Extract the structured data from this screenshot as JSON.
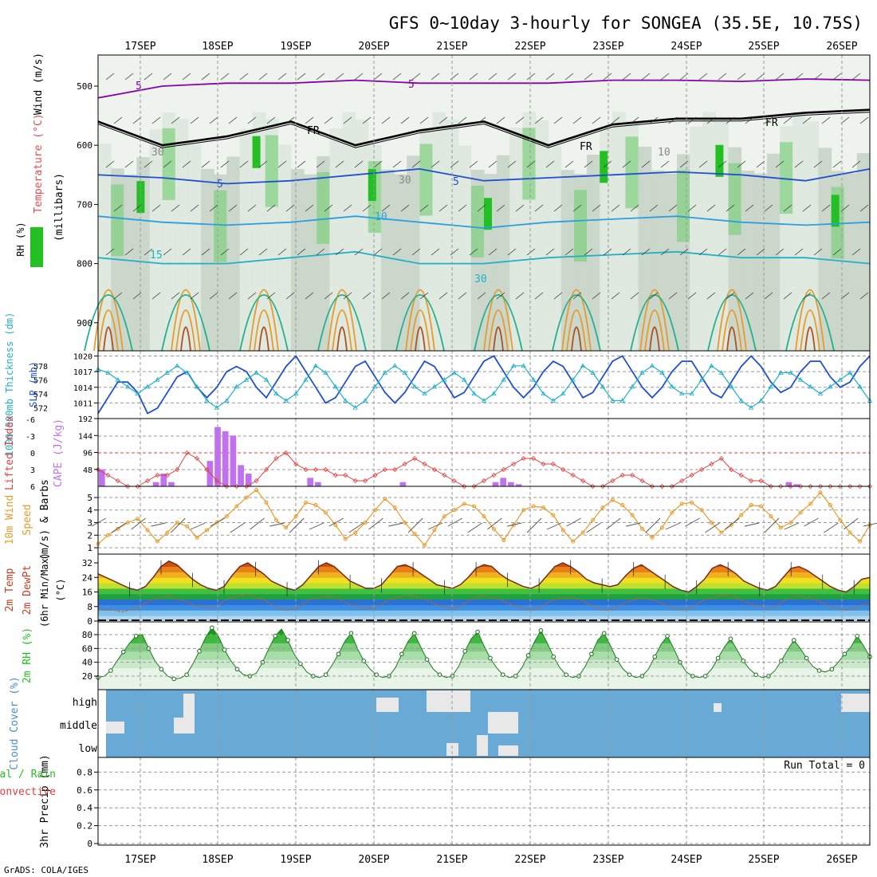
{
  "title": "GFS 0~10day 3-hourly for SONGEA (35.5E, 10.75S)",
  "footer": "GrADS: COLA/IGES",
  "dates": [
    "17SEP",
    "18SEP",
    "19SEP",
    "20SEP",
    "21SEP",
    "22SEP",
    "23SEP",
    "24SEP",
    "25SEP",
    "26SEP"
  ],
  "colors": {
    "rh_green": "#22c022",
    "purple": "#8800aa",
    "blue": "#2050d0",
    "cyan": "#20b0c8",
    "orange": "#e89a2a",
    "cloud_blue": "#69a9d6",
    "cloud_gray": "#e8e8e8",
    "cape": "#c070f0",
    "lifted": "#e04040"
  },
  "chart_data": [
    {
      "type": "contour",
      "name": "upper-air",
      "ylabel_parts": [
        "RH (%)",
        "Temperature (°C)",
        "Wind (m/s)"
      ],
      "ylabel": "(millibars)",
      "yticks": [
        500,
        600,
        700,
        800,
        900
      ],
      "contour_labels": [
        "5",
        "5",
        "5",
        "10",
        "15",
        "5",
        "FR",
        "FR",
        "FR",
        "30",
        "10",
        "30",
        "30"
      ],
      "isotherms": [
        {
          "name": "-5C",
          "level": [
            520,
            500,
            495,
            495,
            490,
            495,
            495,
            495,
            490,
            490,
            492,
            488,
            490
          ]
        },
        {
          "name": "0C (FR)",
          "level": [
            560,
            600,
            585,
            560,
            600,
            575,
            560,
            600,
            565,
            555,
            555,
            545,
            540
          ]
        },
        {
          "name": "5C",
          "level": [
            650,
            655,
            665,
            660,
            650,
            640,
            660,
            655,
            650,
            645,
            650,
            660,
            640
          ]
        },
        {
          "name": "10C",
          "level": [
            720,
            730,
            735,
            730,
            720,
            730,
            740,
            730,
            725,
            720,
            730,
            735,
            730
          ]
        },
        {
          "name": "15C",
          "level": [
            790,
            800,
            800,
            790,
            780,
            800,
            800,
            790,
            785,
            780,
            790,
            790,
            800
          ]
        }
      ]
    },
    {
      "type": "line",
      "name": "slp-thickness",
      "ylabel_left": "1000-500mb Thickness (dm)",
      "ylabel_right": "SLP (mb)",
      "yticks_left": [
        572,
        574,
        576,
        578
      ],
      "yticks_right": [
        1011,
        1014,
        1017,
        1020
      ],
      "ylim_right": [
        1008,
        1021
      ],
      "series": [
        {
          "name": "SLP",
          "values": [
            1009,
            1012,
            1015,
            1015,
            1013,
            1009,
            1010,
            1013,
            1016,
            1017,
            1014,
            1012,
            1014,
            1017,
            1018,
            1017,
            1014,
            1012,
            1015,
            1018,
            1020,
            1017,
            1014,
            1011,
            1012,
            1015,
            1018,
            1019,
            1016,
            1013,
            1011,
            1013,
            1016,
            1019,
            1018,
            1015,
            1012,
            1013,
            1016,
            1019,
            1020,
            1017,
            1014,
            1012,
            1014,
            1017,
            1019,
            1018,
            1015,
            1012,
            1013,
            1016,
            1019,
            1020,
            1017,
            1014,
            1012,
            1014,
            1017,
            1019,
            1019,
            1016,
            1013,
            1012,
            1015,
            1018,
            1020,
            1018,
            1015,
            1013,
            1014,
            1017,
            1019,
            1019,
            1016,
            1014,
            1015,
            1018,
            1020
          ]
        },
        {
          "name": "Thickness",
          "values": [
            577.5,
            577,
            576,
            575,
            574,
            575,
            576,
            577,
            578,
            577,
            575,
            573,
            572,
            573,
            575,
            576,
            577,
            576,
            574,
            573,
            574,
            576,
            578,
            577,
            575,
            573,
            572,
            573,
            575,
            577,
            578,
            577,
            575,
            574,
            575,
            576,
            577,
            576,
            574,
            573,
            574,
            576,
            578,
            578,
            576,
            574,
            573,
            574,
            576,
            578,
            577,
            575,
            573,
            573,
            575,
            577,
            578,
            577,
            575,
            574,
            574,
            576,
            578,
            577,
            575,
            573,
            572,
            573,
            575,
            577,
            577,
            576,
            575,
            574,
            575,
            576,
            577,
            575,
            573
          ]
        }
      ]
    },
    {
      "type": "bar+line",
      "name": "cape-lifted",
      "ylabel_left": "Lifted Index",
      "ylabel_right": "CAPE (J/kg)",
      "yticks_left": [
        -6,
        -3,
        0,
        3,
        6
      ],
      "yticks_right": [
        48,
        96,
        144,
        192
      ],
      "cape_values": [
        48,
        0,
        0,
        0,
        0,
        0,
        0,
        12,
        36,
        12,
        0,
        0,
        0,
        0,
        72,
        168,
        156,
        144,
        60,
        36,
        0,
        0,
        0,
        0,
        0,
        0,
        0,
        24,
        12,
        0,
        0,
        0,
        0,
        0,
        0,
        0,
        0,
        0,
        0,
        12,
        0,
        0,
        0,
        0,
        0,
        0,
        0,
        0,
        0,
        0,
        0,
        12,
        24,
        12,
        6,
        0,
        0,
        0,
        0,
        0,
        0,
        0,
        0,
        0,
        0,
        0,
        0,
        0,
        0,
        0,
        0,
        0,
        0,
        0,
        0,
        0,
        0,
        0,
        0,
        0,
        0,
        0,
        0,
        0,
        0,
        0,
        0,
        0,
        0,
        12,
        6,
        0,
        0,
        0,
        0,
        0,
        0,
        0,
        0,
        0
      ],
      "lifted_values": [
        3,
        4,
        5,
        6,
        6,
        5,
        4,
        4,
        3,
        0,
        1,
        3,
        5,
        6,
        6,
        6,
        5,
        3,
        1,
        0,
        2,
        3,
        3,
        3,
        4,
        4,
        5,
        5,
        4,
        3,
        3,
        2,
        1,
        2,
        3,
        4,
        5,
        6,
        6,
        5,
        4,
        3,
        2,
        1,
        1,
        2,
        2,
        3,
        4,
        5,
        6,
        6,
        5,
        4,
        4,
        5,
        6,
        6,
        6,
        5,
        4,
        3,
        2,
        1,
        3,
        4,
        5,
        5,
        6,
        6,
        6,
        6,
        6,
        6,
        6,
        6,
        6,
        6,
        6
      ]
    },
    {
      "type": "line",
      "name": "wind10m",
      "ylabel": "10m Wind Speed (m/s) & Barbs",
      "yticks": [
        1,
        2,
        3,
        4,
        5
      ],
      "values": [
        1.3,
        2,
        2.5,
        3,
        3.3,
        2.4,
        1.5,
        2.2,
        3,
        2.7,
        1.8,
        2.4,
        3,
        3.5,
        4.3,
        5,
        5.6,
        4.6,
        3.2,
        2.6,
        3.5,
        4.6,
        4.4,
        3.8,
        2.8,
        1.7,
        2.2,
        3,
        4,
        4.9,
        4.2,
        3,
        2.1,
        1.2,
        2.4,
        3.5,
        4,
        4.5,
        4.3,
        3.5,
        2.5,
        1.6,
        2.8,
        4,
        4.3,
        4.2,
        3.6,
        2.4,
        1.5,
        2.2,
        3.2,
        4.2,
        4.8,
        4.4,
        3.6,
        2.5,
        1.8,
        2.6,
        3.8,
        4.5,
        4.6,
        4,
        3,
        2.2,
        2.8,
        3.6,
        4.4,
        4.3,
        3.5,
        2.6,
        3,
        3.8,
        4.5,
        5.4,
        4.4,
        3.2,
        2.2,
        1.5,
        2.8
      ]
    },
    {
      "type": "area",
      "name": "temp2m",
      "ylabel": "2m Temp / 2m DewPt (6hr Min/Max) (°C)",
      "yticks": [
        0,
        8,
        16,
        24,
        32
      ],
      "temp": [
        26,
        24,
        22,
        20,
        18,
        17,
        19,
        24,
        30,
        33,
        31,
        27,
        23,
        20,
        18,
        17,
        19,
        25,
        30,
        32,
        29,
        26,
        22,
        20,
        18,
        17,
        20,
        25,
        30,
        32,
        30,
        26,
        22,
        20,
        18,
        18,
        20,
        25,
        30,
        31,
        29,
        26,
        23,
        20,
        19,
        18,
        20,
        24,
        29,
        31,
        30,
        26,
        23,
        21,
        19,
        18,
        20,
        25,
        30,
        32,
        30,
        27,
        23,
        21,
        20,
        19,
        20,
        25,
        29,
        31,
        28,
        25,
        22,
        19,
        17,
        16,
        19,
        23,
        29,
        31,
        29,
        26,
        22,
        20,
        18,
        17,
        19,
        24,
        29,
        30,
        28,
        25,
        22,
        19,
        17,
        16,
        19,
        23,
        24
      ],
      "dewpt": [
        7,
        6,
        6,
        5,
        6,
        7,
        10,
        12,
        13,
        14,
        12,
        11,
        9,
        8,
        7,
        8,
        11,
        13,
        14,
        15,
        13,
        12,
        9,
        7,
        6,
        7,
        9,
        12,
        13,
        14,
        13,
        11,
        9,
        8,
        7,
        7,
        9,
        12,
        13,
        14,
        14,
        13,
        11,
        9,
        8,
        7,
        8,
        11,
        13,
        14,
        13,
        12,
        10,
        8,
        7,
        6,
        7,
        10,
        12,
        13,
        13,
        12,
        10,
        8,
        6,
        6,
        8,
        10,
        12,
        13,
        12,
        11,
        9,
        7,
        6,
        7,
        9,
        12,
        13,
        14,
        14,
        13,
        11,
        9,
        8,
        7,
        8,
        11,
        13,
        14,
        13,
        12,
        10,
        8,
        7,
        6,
        7,
        9,
        10
      ]
    },
    {
      "type": "area",
      "name": "rh2m",
      "ylabel": "2m RH (%)",
      "yticks": [
        20,
        40,
        60,
        80
      ],
      "values": [
        18,
        20,
        28,
        42,
        55,
        68,
        78,
        80,
        60,
        42,
        30,
        20,
        16,
        17,
        22,
        38,
        56,
        76,
        90,
        78,
        58,
        42,
        30,
        22,
        20,
        24,
        40,
        60,
        78,
        88,
        72,
        52,
        38,
        26,
        20,
        18,
        22,
        36,
        52,
        70,
        82,
        60,
        42,
        30,
        22,
        18,
        20,
        32,
        52,
        70,
        82,
        62,
        44,
        30,
        22,
        18,
        20,
        34,
        56,
        74,
        84,
        64,
        46,
        32,
        22,
        18,
        20,
        32,
        50,
        70,
        86,
        68,
        48,
        32,
        22,
        18,
        20,
        34,
        52,
        72,
        82,
        64,
        44,
        30,
        22,
        18,
        20,
        30,
        48,
        66,
        78,
        60,
        40,
        26,
        20,
        18,
        20,
        30,
        46,
        62,
        74,
        58,
        42,
        30,
        22,
        18,
        20,
        28,
        42,
        58,
        72,
        60,
        46,
        34,
        28,
        26,
        30,
        40,
        52,
        62,
        78,
        64,
        48
      ]
    },
    {
      "type": "heatmap",
      "name": "cloud-cover",
      "ylabel": "Cloud Cover (%)",
      "categories": [
        "high",
        "middle",
        "low"
      ]
    },
    {
      "type": "bar",
      "name": "precip",
      "ylabel": "3hr Precip (mm)",
      "ylabel_side": "Total / Rain / Convective",
      "yticks": [
        0,
        0.2,
        0.4,
        0.6,
        0.8
      ],
      "ylim": [
        0,
        1
      ],
      "run_total": "Run Total = 0"
    }
  ]
}
